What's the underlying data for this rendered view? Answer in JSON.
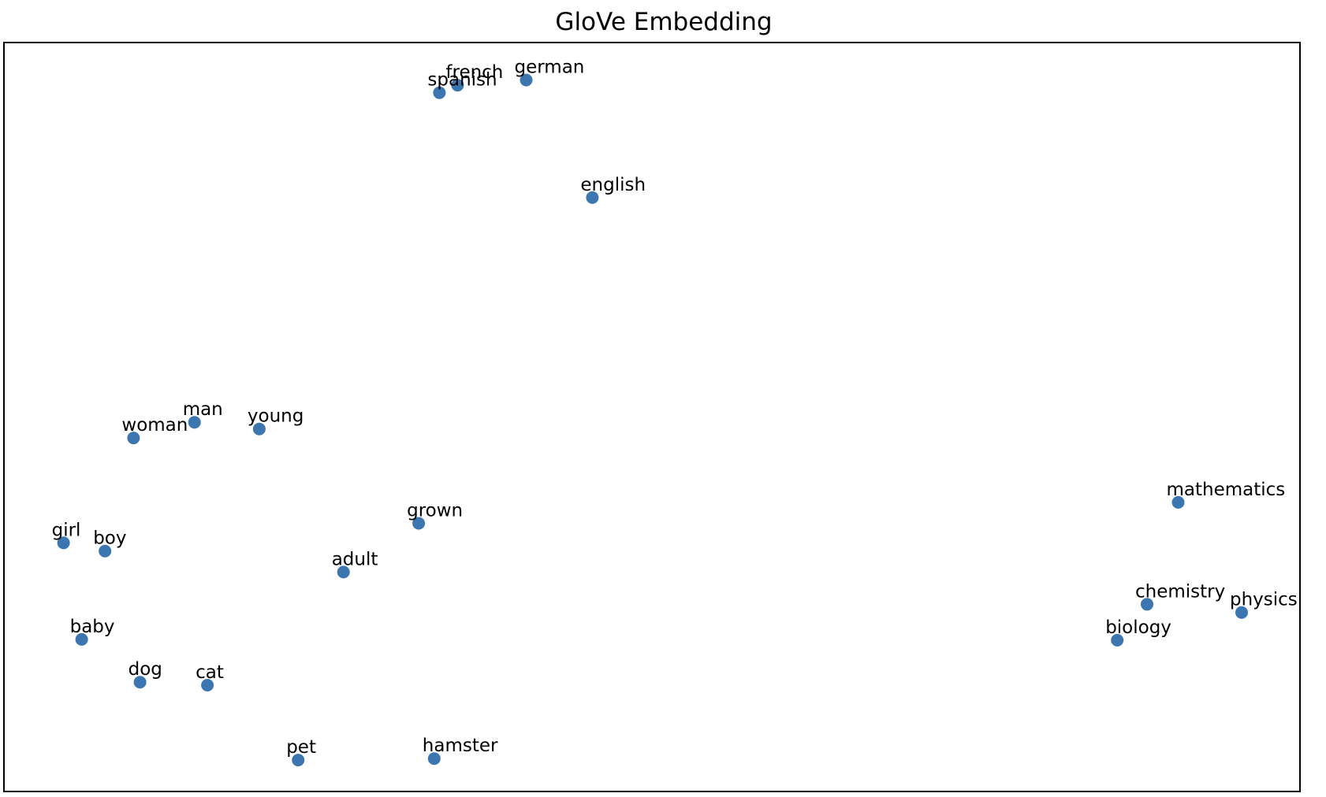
{
  "chart_data": {
    "type": "scatter",
    "title": "GloVe Embedding",
    "xlabel": "",
    "ylabel": "",
    "xlim": [
      0,
      100
    ],
    "ylim": [
      0,
      100
    ],
    "grid": false,
    "axis_ticks": false,
    "marker_color": "#3b76b0",
    "points": [
      {
        "label": "french",
        "x": 35.0,
        "y": 94.3
      },
      {
        "label": "spanish",
        "x": 33.6,
        "y": 93.3
      },
      {
        "label": "german",
        "x": 40.3,
        "y": 95.0
      },
      {
        "label": "english",
        "x": 45.4,
        "y": 79.3
      },
      {
        "label": "man",
        "x": 14.7,
        "y": 49.3
      },
      {
        "label": "woman",
        "x": 10.0,
        "y": 47.2
      },
      {
        "label": "young",
        "x": 19.7,
        "y": 48.4
      },
      {
        "label": "grown",
        "x": 32.0,
        "y": 35.8
      },
      {
        "label": "girl",
        "x": 4.6,
        "y": 33.2
      },
      {
        "label": "boy",
        "x": 7.8,
        "y": 32.1
      },
      {
        "label": "adult",
        "x": 26.2,
        "y": 29.3
      },
      {
        "label": "baby",
        "x": 6.0,
        "y": 20.3
      },
      {
        "label": "dog",
        "x": 10.5,
        "y": 14.6
      },
      {
        "label": "cat",
        "x": 15.7,
        "y": 14.2
      },
      {
        "label": "pet",
        "x": 22.7,
        "y": 4.2
      },
      {
        "label": "hamster",
        "x": 33.2,
        "y": 4.4
      },
      {
        "label": "mathematics",
        "x": 90.6,
        "y": 38.6
      },
      {
        "label": "chemistry",
        "x": 88.2,
        "y": 25.0
      },
      {
        "label": "physics",
        "x": 95.5,
        "y": 23.9
      },
      {
        "label": "biology",
        "x": 85.9,
        "y": 20.2
      }
    ]
  }
}
